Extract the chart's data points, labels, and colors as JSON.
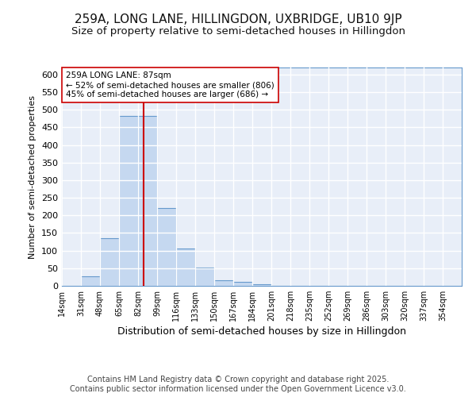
{
  "title": "259A, LONG LANE, HILLINGDON, UXBRIDGE, UB10 9JP",
  "subtitle": "Size of property relative to semi-detached houses in Hillingdon",
  "xlabel": "Distribution of semi-detached houses by size in Hillingdon",
  "ylabel": "Number of semi-detached properties",
  "categories": [
    "14sqm",
    "31sqm",
    "48sqm",
    "65sqm",
    "82sqm",
    "99sqm",
    "116sqm",
    "133sqm",
    "150sqm",
    "167sqm",
    "184sqm",
    "201sqm",
    "218sqm",
    "235sqm",
    "252sqm",
    "269sqm",
    "286sqm",
    "303sqm",
    "320sqm",
    "337sqm",
    "354sqm"
  ],
  "values": [
    0,
    27,
    135,
    482,
    482,
    222,
    107,
    52,
    15,
    12,
    4,
    1,
    0,
    0,
    0,
    0,
    0,
    0,
    0,
    1,
    0
  ],
  "bin_edges": [
    14,
    31,
    48,
    65,
    82,
    99,
    116,
    133,
    150,
    167,
    184,
    201,
    218,
    235,
    252,
    269,
    286,
    303,
    320,
    337,
    354,
    371
  ],
  "bar_color": "#c5d8f0",
  "bar_edge_color": "#6699cc",
  "property_size": 87,
  "red_line_color": "#cc0000",
  "annotation_line1": "259A LONG LANE: 87sqm",
  "annotation_line2": "← 52% of semi-detached houses are smaller (806)",
  "annotation_line3": "45% of semi-detached houses are larger (686) →",
  "annotation_box_color": "#ffffff",
  "annotation_box_edge": "#cc0000",
  "ylim": [
    0,
    620
  ],
  "yticks": [
    0,
    50,
    100,
    150,
    200,
    250,
    300,
    350,
    400,
    450,
    500,
    550,
    600
  ],
  "background_color": "#ffffff",
  "plot_background": "#e8eef8",
  "grid_color": "#ffffff",
  "footer_text": "Contains HM Land Registry data © Crown copyright and database right 2025.\nContains public sector information licensed under the Open Government Licence v3.0.",
  "title_fontsize": 11,
  "subtitle_fontsize": 9.5,
  "footer_fontsize": 7
}
